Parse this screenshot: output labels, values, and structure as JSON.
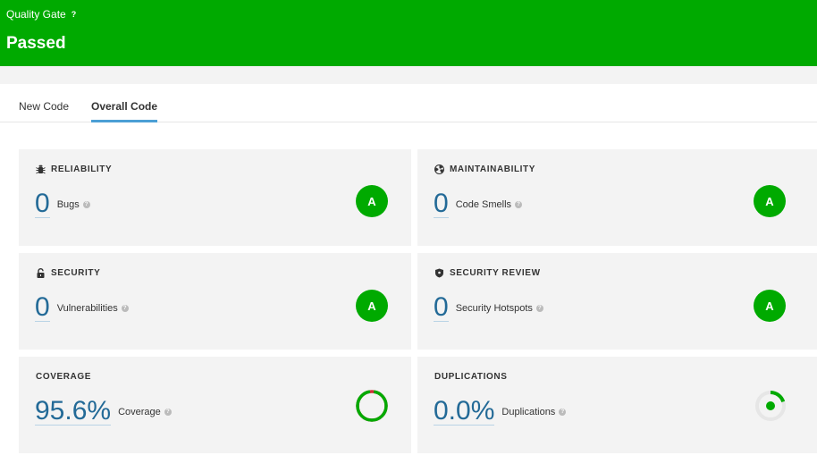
{
  "quality_gate": {
    "label": "Quality Gate",
    "help": "?",
    "status": "Passed",
    "color": "#00aa00"
  },
  "tabs": [
    {
      "label": "New Code",
      "active": false
    },
    {
      "label": "Overall Code",
      "active": true
    }
  ],
  "cards": {
    "reliability": {
      "title": "RELIABILITY",
      "icon": "bug-icon",
      "value": "0",
      "label": "Bugs",
      "rating": "A"
    },
    "maintainability": {
      "title": "MAINTAINABILITY",
      "icon": "radiation-icon",
      "value": "0",
      "label": "Code Smells",
      "rating": "A"
    },
    "security": {
      "title": "SECURITY",
      "icon": "lock-icon",
      "value": "0",
      "label": "Vulnerabilities",
      "rating": "A"
    },
    "security_review": {
      "title": "SECURITY REVIEW",
      "icon": "shield-icon",
      "value": "0",
      "label": "Security Hotspots",
      "rating": "A"
    },
    "coverage": {
      "title": "COVERAGE",
      "value": "95.6%",
      "label": "Coverage",
      "percent": 95.6
    },
    "duplications": {
      "title": "DUPLICATIONS",
      "value": "0.0%",
      "label": "Duplications",
      "percent": 0.0
    }
  },
  "colors": {
    "accent": "#4b9fd5",
    "metric_value": "#236a97",
    "rating_a": "#00aa00",
    "coverage_uncovered": "#d02f3a",
    "duplication_track": "#e6e6e6"
  }
}
